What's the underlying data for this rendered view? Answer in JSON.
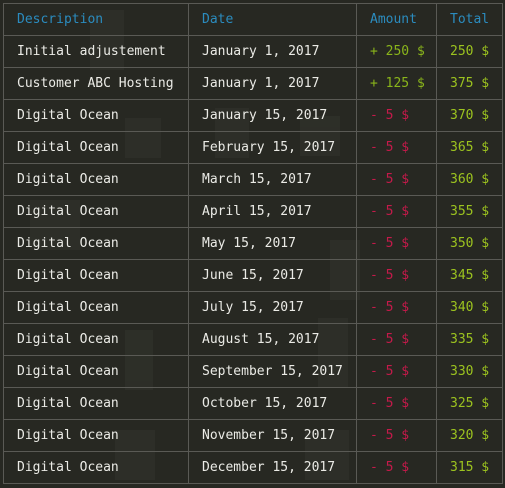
{
  "table": {
    "headers": {
      "description": "Description",
      "date": "Date",
      "amount": "Amount",
      "total": "Total"
    },
    "rows": [
      {
        "description": "Initial adjustement",
        "date": "January 1, 2017",
        "amount": "+ 250 $",
        "amount_sign": "positive",
        "total": "250 $"
      },
      {
        "description": "Customer ABC Hosting",
        "date": "January 1, 2017",
        "amount": "+ 125 $",
        "amount_sign": "positive",
        "total": "375 $"
      },
      {
        "description": "Digital Ocean",
        "date": "January 15, 2017",
        "amount": "- 5 $",
        "amount_sign": "negative",
        "total": "370 $"
      },
      {
        "description": "Digital Ocean",
        "date": "February 15, 2017",
        "amount": "- 5 $",
        "amount_sign": "negative",
        "total": "365 $"
      },
      {
        "description": "Digital Ocean",
        "date": "March 15, 2017",
        "amount": "- 5 $",
        "amount_sign": "negative",
        "total": "360 $"
      },
      {
        "description": "Digital Ocean",
        "date": "April 15, 2017",
        "amount": "- 5 $",
        "amount_sign": "negative",
        "total": "355 $"
      },
      {
        "description": "Digital Ocean",
        "date": "May 15, 2017",
        "amount": "- 5 $",
        "amount_sign": "negative",
        "total": "350 $"
      },
      {
        "description": "Digital Ocean",
        "date": "June 15, 2017",
        "amount": "- 5 $",
        "amount_sign": "negative",
        "total": "345 $"
      },
      {
        "description": "Digital Ocean",
        "date": "July 15, 2017",
        "amount": "- 5 $",
        "amount_sign": "negative",
        "total": "340 $"
      },
      {
        "description": "Digital Ocean",
        "date": "August 15, 2017",
        "amount": "- 5 $",
        "amount_sign": "negative",
        "total": "335 $"
      },
      {
        "description": "Digital Ocean",
        "date": "September 15, 2017",
        "amount": "- 5 $",
        "amount_sign": "negative",
        "total": "330 $"
      },
      {
        "description": "Digital Ocean",
        "date": "October 15, 2017",
        "amount": "- 5 $",
        "amount_sign": "negative",
        "total": "325 $"
      },
      {
        "description": "Digital Ocean",
        "date": "November 15, 2017",
        "amount": "- 5 $",
        "amount_sign": "negative",
        "total": "320 $"
      },
      {
        "description": "Digital Ocean",
        "date": "December 15, 2017",
        "amount": "- 5 $",
        "amount_sign": "negative",
        "total": "315 $"
      }
    ]
  },
  "colors": {
    "background": "#272822",
    "header_text": "#2b8cbf",
    "body_text": "#ebebe6",
    "amount_positive": "#8ab51b",
    "amount_negative": "#c41a4a",
    "total": "#9cc31f",
    "grid_line": "#5a5a55"
  }
}
